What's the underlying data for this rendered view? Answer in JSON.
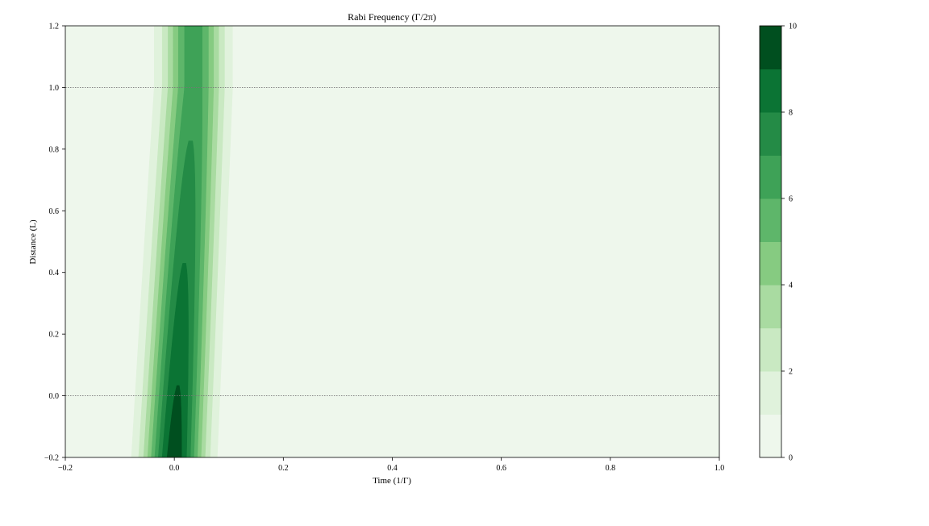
{
  "chart_data": {
    "type": "heatmap",
    "subtype": "filled-contour",
    "title": "Rabi Frequency (Γ/2π)",
    "xlabel": "Time (1/Γ)",
    "ylabel": "Distance (L)",
    "xlim": [
      -0.2,
      1.0
    ],
    "ylim": [
      -0.2,
      1.2
    ],
    "xticks": [
      -0.2,
      0.0,
      0.2,
      0.4,
      0.6,
      0.8,
      1.0
    ],
    "yticks": [
      -0.2,
      0.0,
      0.2,
      0.4,
      0.6,
      0.8,
      1.0,
      1.2
    ],
    "xtick_labels": [
      "−0.2",
      "0.0",
      "0.2",
      "0.4",
      "0.6",
      "0.8",
      "1.0"
    ],
    "ytick_labels": [
      "−0.2",
      "0.0",
      "0.2",
      "0.4",
      "0.6",
      "0.8",
      "1.0",
      "1.2"
    ],
    "reference_lines_y": [
      0.0,
      1.0
    ],
    "reference_line_style": "dotted gray",
    "grid": false,
    "colormap": "Greens",
    "levels": [
      0,
      1,
      2,
      3,
      4,
      5,
      6,
      7,
      8,
      9,
      10
    ],
    "level_colors": [
      "#eef7ec",
      "#e0f2dc",
      "#c9e9c2",
      "#a9dba1",
      "#86cb81",
      "#5eb66a",
      "#3ea257",
      "#248b46",
      "#0b7434",
      "#004f1f"
    ],
    "colorbar": {
      "ticks": [
        0,
        2,
        4,
        6,
        8,
        10
      ],
      "tick_labels": [
        "0",
        "2",
        "4",
        "6",
        "8",
        "10"
      ],
      "placement": "right"
    },
    "field": {
      "description_of_values": "Gaussian pulse in time, peak ≈ 9.6 at t≈0.0 near distance −0.2, decaying with distance; pulse centre drifts to t≈0.035 at distance 1.0, constant above 1.0",
      "peak_amplitude_at_x0": 9.6,
      "peak_amplitude_at_x1": 6.6,
      "center_time_at_x0": 0.0,
      "center_time_at_x1": 0.035,
      "pulse_sigma_time": 0.037
    }
  }
}
